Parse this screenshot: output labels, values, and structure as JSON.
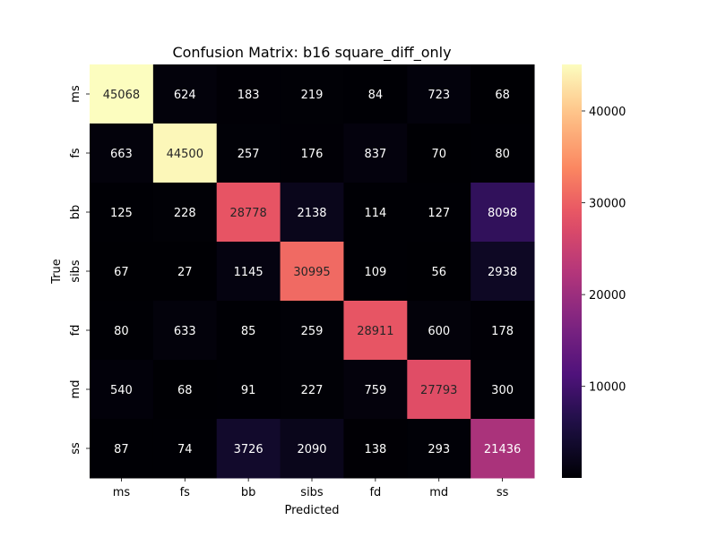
{
  "chart_data": {
    "type": "heatmap",
    "title": "Confusion Matrix: b16 square_diff_only",
    "xlabel": "Predicted",
    "ylabel": "True",
    "x_categories": [
      "ms",
      "fs",
      "bb",
      "sibs",
      "fd",
      "md",
      "ss"
    ],
    "y_categories": [
      "ms",
      "fs",
      "bb",
      "sibs",
      "fd",
      "md",
      "ss"
    ],
    "values": [
      [
        45068,
        624,
        183,
        219,
        84,
        723,
        68
      ],
      [
        663,
        44500,
        257,
        176,
        837,
        70,
        80
      ],
      [
        125,
        228,
        28778,
        2138,
        114,
        127,
        8098
      ],
      [
        67,
        27,
        1145,
        30995,
        109,
        56,
        2938
      ],
      [
        80,
        633,
        85,
        259,
        28911,
        600,
        178
      ],
      [
        540,
        68,
        91,
        227,
        759,
        27793,
        300
      ],
      [
        87,
        74,
        3726,
        2090,
        138,
        293,
        21436
      ]
    ],
    "colormap": "magma",
    "colorbar": {
      "vmin": 27,
      "vmax": 45068,
      "ticks": [
        10000,
        20000,
        30000,
        40000
      ],
      "tick_labels": [
        "10000",
        "20000",
        "30000",
        "40000"
      ]
    }
  }
}
